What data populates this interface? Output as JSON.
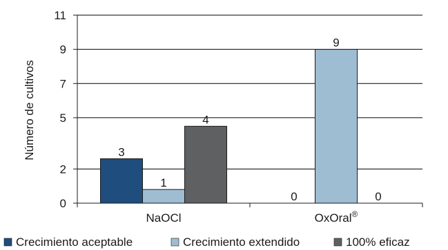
{
  "chart_data": {
    "type": "bar",
    "title": "",
    "xlabel": "",
    "ylabel": "Número de cultivos",
    "categories": [
      "NaOCl",
      "OxOral"
    ],
    "category_superscripts": [
      "",
      "®"
    ],
    "yticks": [
      0,
      2,
      5,
      7,
      9,
      11
    ],
    "ylim": [
      0,
      11
    ],
    "series": [
      {
        "name": "Crecimiento aceptable",
        "color": "#1f4e7e",
        "values": [
          2.6,
          0
        ],
        "labels": [
          "3",
          "0"
        ]
      },
      {
        "name": "Crecimiento extendido",
        "color": "#9ebdd2",
        "values": [
          0.8,
          9
        ],
        "labels": [
          "1",
          "9"
        ]
      },
      {
        "name": "100% eficaz",
        "color": "#5f6062",
        "values": [
          4.5,
          0
        ],
        "labels": [
          "4",
          "0"
        ]
      }
    ],
    "grid": "horizontal",
    "legend": "bottom",
    "axis_color": "#1a1a1a",
    "grid_color": "#000000"
  }
}
